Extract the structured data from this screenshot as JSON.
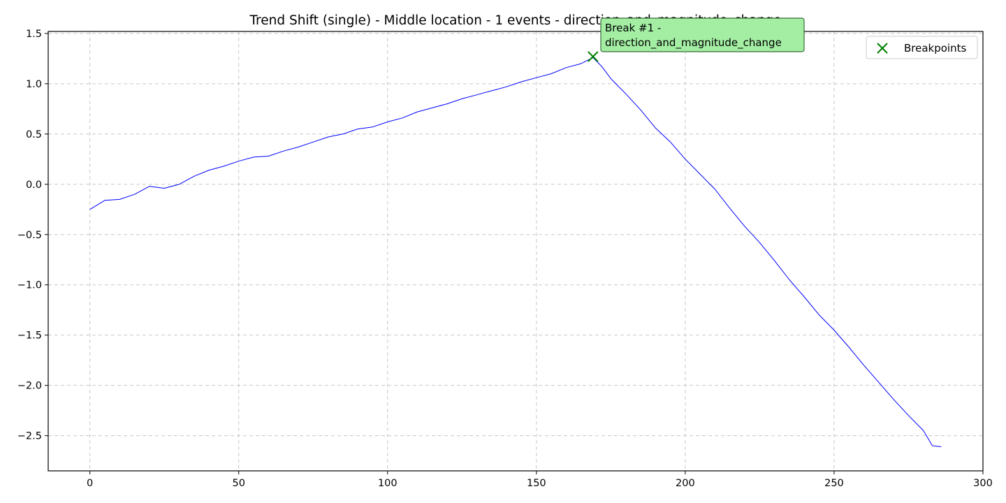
{
  "chart_data": {
    "type": "line",
    "title": "Trend Shift (single) - Middle location - 1 events - direction_and_magnitude_change",
    "xlabel": "",
    "ylabel": "",
    "xlim": [
      -14,
      300
    ],
    "ylim": [
      -2.85,
      1.52
    ],
    "x_ticks": [
      0,
      50,
      100,
      150,
      200,
      250,
      300
    ],
    "y_ticks": [
      1.5,
      1.0,
      0.5,
      0.0,
      -0.5,
      -1.0,
      -1.5,
      -2.0,
      -2.5
    ],
    "x_tick_labels": [
      "0",
      "50",
      "100",
      "150",
      "200",
      "250",
      "300"
    ],
    "y_tick_labels": [
      "1.5",
      "1.0",
      "0.5",
      "0.0",
      "−0.5",
      "−1.0",
      "−1.5",
      "−2.0",
      "−2.5"
    ],
    "grid": true,
    "legend_position": "top-right",
    "series": [
      {
        "color": "#0000ff",
        "x": [
          0,
          5,
          10,
          15,
          20,
          25,
          30,
          35,
          40,
          45,
          50,
          55,
          60,
          65,
          70,
          75,
          80,
          85,
          90,
          95,
          100,
          105,
          110,
          115,
          120,
          125,
          130,
          135,
          140,
          145,
          150,
          155,
          160,
          165,
          169,
          172,
          175,
          180,
          185,
          190,
          195,
          200,
          205,
          210,
          215,
          220,
          225,
          230,
          235,
          240,
          245,
          250,
          255,
          260,
          265,
          270,
          275,
          280,
          283,
          286
        ],
        "y": [
          -0.25,
          -0.16,
          -0.15,
          -0.1,
          -0.02,
          -0.04,
          0.0,
          0.08,
          0.14,
          0.18,
          0.23,
          0.27,
          0.28,
          0.33,
          0.37,
          0.42,
          0.47,
          0.5,
          0.55,
          0.57,
          0.62,
          0.66,
          0.72,
          0.76,
          0.8,
          0.85,
          0.89,
          0.93,
          0.97,
          1.02,
          1.06,
          1.1,
          1.16,
          1.2,
          1.26,
          1.17,
          1.05,
          0.9,
          0.74,
          0.56,
          0.42,
          0.25,
          0.1,
          -0.05,
          -0.24,
          -0.42,
          -0.58,
          -0.76,
          -0.95,
          -1.12,
          -1.3,
          -1.45,
          -1.62,
          -1.8,
          -1.97,
          -2.14,
          -2.3,
          -2.45,
          -2.6,
          -2.61
        ]
      }
    ],
    "breakpoints": {
      "label": "Breakpoints",
      "marker": "x",
      "color": "#008000",
      "points": [
        {
          "x": 169,
          "y": 1.27
        }
      ]
    },
    "annotations": [
      {
        "line1": "Break #1 -",
        "line2": "direction_and_magnitude_change",
        "anchor_x": 169,
        "anchor_y": 1.27,
        "background": "#a4eea4",
        "border": "#3a6b3a"
      }
    ]
  }
}
